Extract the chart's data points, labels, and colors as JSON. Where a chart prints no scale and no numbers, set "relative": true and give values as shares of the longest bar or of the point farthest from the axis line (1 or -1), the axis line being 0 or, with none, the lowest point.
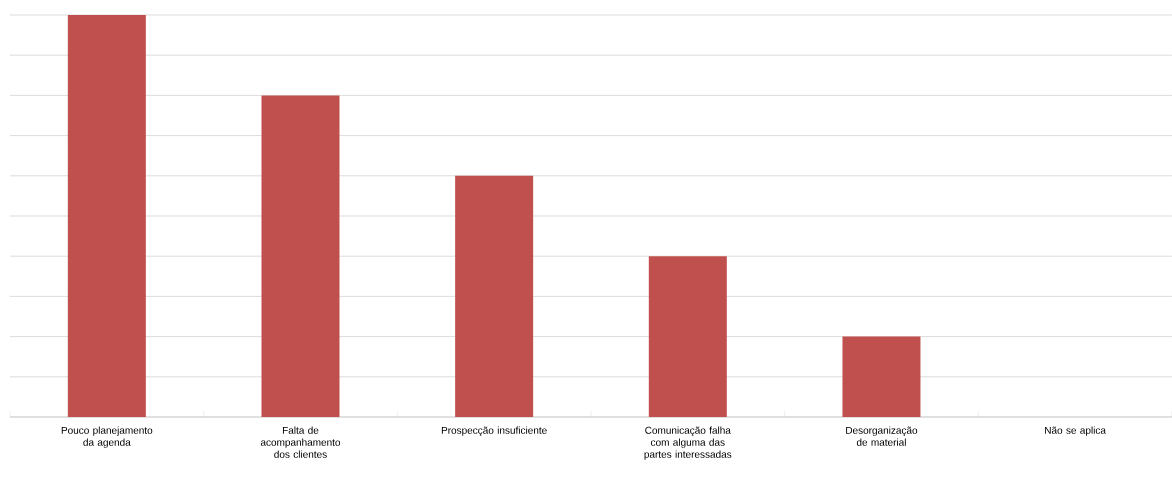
{
  "chart_data": {
    "type": "bar",
    "relative": true,
    "grid": "y",
    "categories": [
      "Pouco planejamento da agenda",
      "Falta de acompanhamento dos clientes",
      "Prospecção insuficiente",
      "Comunicação falha com alguma das partes interessadas",
      "Desorganização de material",
      "Não se aplica"
    ],
    "values": [
      1,
      0.8,
      0.6,
      0.4,
      0.2,
      0
    ],
    "color": "#c0504d"
  }
}
